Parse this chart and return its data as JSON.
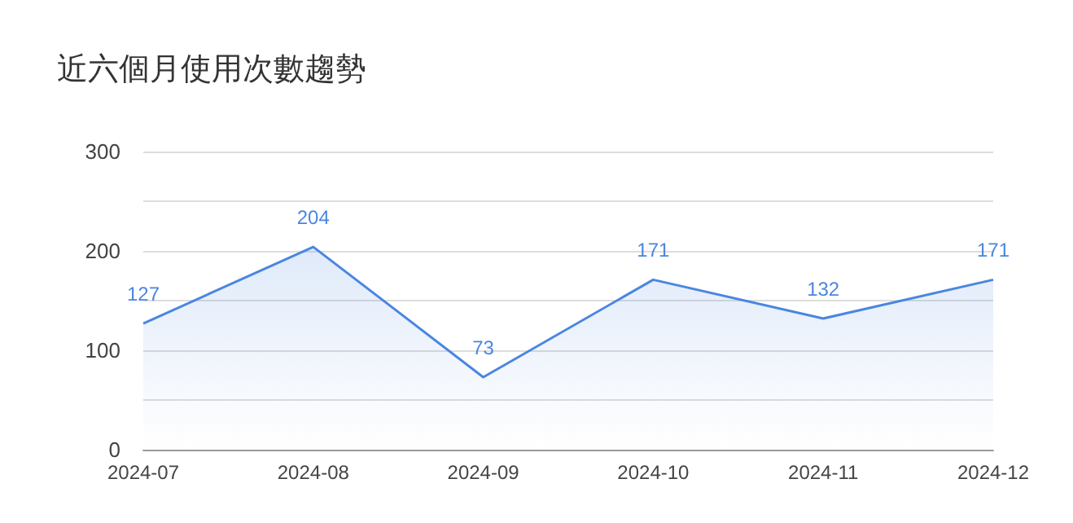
{
  "chart_data": {
    "type": "area",
    "title": "近六個月使用次數趨勢",
    "categories": [
      "2024-07",
      "2024-08",
      "2024-09",
      "2024-10",
      "2024-11",
      "2024-12"
    ],
    "series": [
      {
        "color": "#4a86e0",
        "values": [
          127,
          204,
          73,
          171,
          132,
          171
        ]
      }
    ],
    "ylim": [
      0,
      300
    ],
    "yticks": [
      0,
      {
        "value": 50,
        "label": null
      },
      100,
      {
        "value": 150,
        "label": null
      },
      200,
      {
        "value": 250,
        "label": null
      },
      300
    ],
    "grid": "y",
    "data_labels": true,
    "marker": "none"
  }
}
